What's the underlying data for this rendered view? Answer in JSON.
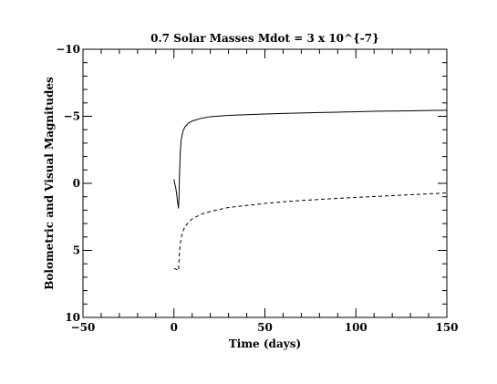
{
  "chart_data": {
    "type": "line",
    "title": "0.7 Solar Masses  Mdot = 3 x 10^{-7}",
    "xlabel": "Time (days)",
    "ylabel": "Bolometric and Visual Magnitudes",
    "xlim": [
      -50,
      150
    ],
    "ylim": [
      10,
      -10
    ],
    "y_inverted": true,
    "grid": false,
    "x_ticks": [
      -50,
      0,
      50,
      100,
      150
    ],
    "x_tick_labels": [
      "−50",
      "0",
      "50",
      "100",
      "150"
    ],
    "y_ticks": [
      -10,
      -5,
      0,
      5,
      10
    ],
    "y_tick_labels": [
      "−10",
      "−5",
      "0",
      "5",
      "10"
    ],
    "series": [
      {
        "line_style": "solid",
        "color": "#000000",
        "x": [
          0.0,
          0.5,
          1.0,
          1.5,
          2.0,
          2.5,
          2.8,
          3.0,
          3.5,
          4.0,
          5.0,
          6.0,
          8.0,
          10.0,
          15.0,
          20.0,
          30.0,
          40.0,
          50.0,
          60.0,
          70.0,
          80.0,
          90.0,
          100.0,
          110.0,
          120.0,
          130.0,
          140.0,
          150.0
        ],
        "y": [
          -0.3,
          0.05,
          0.35,
          0.8,
          1.4,
          1.85,
          1.0,
          -0.5,
          -2.4,
          -3.3,
          -3.9,
          -4.2,
          -4.5,
          -4.65,
          -4.85,
          -4.97,
          -5.07,
          -5.12,
          -5.17,
          -5.21,
          -5.25,
          -5.28,
          -5.31,
          -5.34,
          -5.37,
          -5.39,
          -5.41,
          -5.43,
          -5.45
        ]
      },
      {
        "line_style": "dashed",
        "color": "#000000",
        "x": [
          0.0,
          1.0,
          2.0,
          2.5,
          3.0,
          3.5,
          4.0,
          5.0,
          6.0,
          8.0,
          10.0,
          15.0,
          20.0,
          30.0,
          40.0,
          50.0,
          60.0,
          70.0,
          80.0,
          90.0,
          100.0,
          110.0,
          120.0,
          130.0,
          140.0,
          150.0
        ],
        "y": [
          6.35,
          6.4,
          6.45,
          6.5,
          5.2,
          4.5,
          4.05,
          3.55,
          3.25,
          2.9,
          2.65,
          2.3,
          2.1,
          1.8,
          1.65,
          1.5,
          1.38,
          1.28,
          1.2,
          1.12,
          1.05,
          0.98,
          0.92,
          0.85,
          0.78,
          0.72
        ]
      }
    ]
  }
}
